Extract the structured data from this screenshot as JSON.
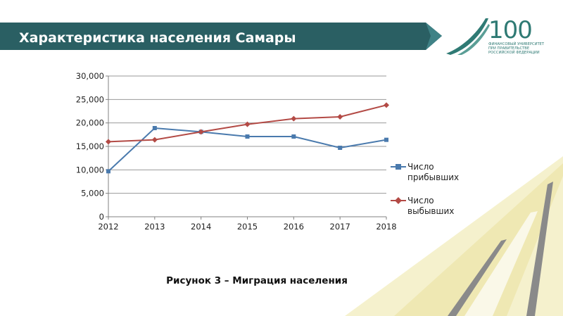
{
  "slide": {
    "title": "Характеристика населения Самары",
    "caption": "Рисунок 3 – Миграция населения"
  },
  "logo": {
    "number": "100",
    "line1": "ФИНАНСОВЫЙ УНИВЕРСИТЕТ",
    "line2": "ПРИ ПРАВИТЕЛЬСТВЕ",
    "line3": "РОССИЙСКОЙ ФЕДЕРАЦИИ"
  },
  "colors": {
    "banner": "#2a5f63",
    "banner_edge": "#3f8286",
    "logo": "#2f7a74",
    "decor_light": "#f3efc4",
    "decor_mid": "#ece4a8",
    "decor_gray": "#8a8a8a",
    "grid": "#9a9a9a",
    "axis": "#808080"
  },
  "chart_data": {
    "type": "line",
    "title": "",
    "xlabel": "",
    "ylabel": "",
    "categories": [
      "2012",
      "2013",
      "2014",
      "2015",
      "2016",
      "2017",
      "2018"
    ],
    "ylim": [
      0,
      30000
    ],
    "yticks": [
      "0",
      "5,000",
      "10,000",
      "15,000",
      "20,000",
      "25,000",
      "30,000"
    ],
    "grid": true,
    "legend_position": "right",
    "series": [
      {
        "name": "Число прибывших",
        "values": [
          9700,
          18900,
          18100,
          17100,
          17100,
          14700,
          16400
        ],
        "color": "#4a7aad",
        "marker": "square"
      },
      {
        "name": "Число выбывших",
        "values": [
          16000,
          16400,
          18100,
          19700,
          20900,
          21300,
          23800
        ],
        "color": "#b34a45",
        "marker": "diamond"
      }
    ]
  }
}
